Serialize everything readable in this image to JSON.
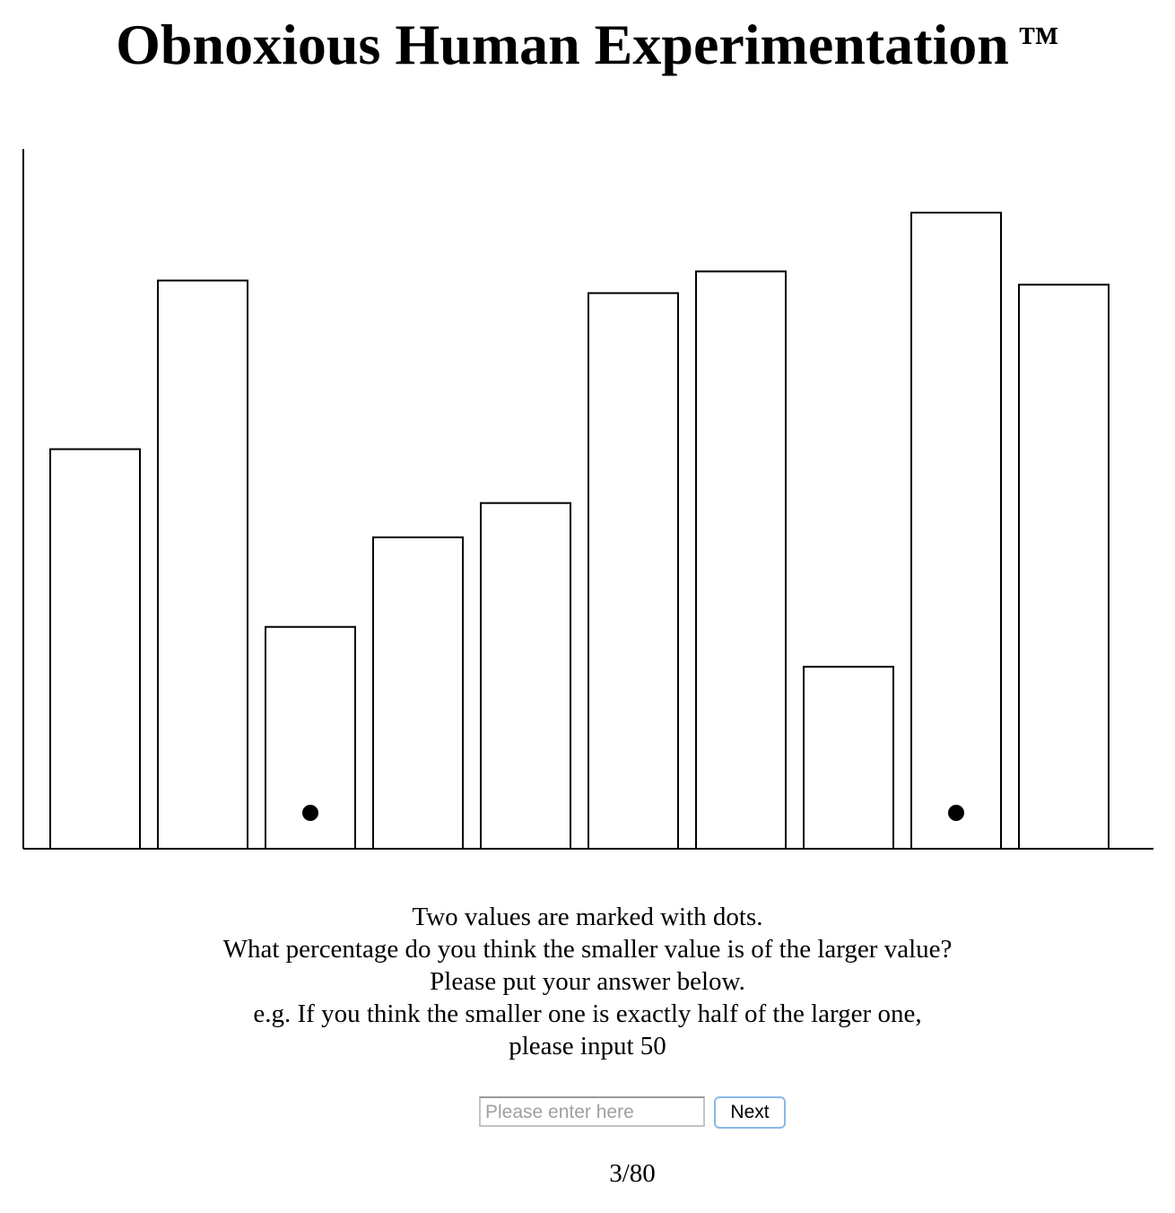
{
  "page": {
    "title": "Obnoxious Human Experimentation",
    "trademark": "™"
  },
  "chart_data": {
    "type": "bar",
    "title": "",
    "xlabel": "",
    "ylabel": "",
    "ylim": [
      0,
      100
    ],
    "grid": false,
    "categories": [
      "",
      "",
      "",
      "",
      "",
      "",
      "",
      "",
      "",
      ""
    ],
    "values": [
      57.1,
      81.2,
      31.7,
      44.5,
      49.4,
      79.4,
      82.5,
      26.0,
      90.9,
      80.6
    ],
    "marked_indices": [
      2,
      8
    ],
    "marker": "dot"
  },
  "instructions": {
    "line1": "Two values are marked with dots.",
    "line2": "What percentage do you think the smaller value is of the larger value?",
    "line3": "Please put your answer below.",
    "line4": "e.g. If you think the smaller one is exactly half of the larger one,",
    "line5": "please input 50"
  },
  "answer": {
    "placeholder": "Please enter here",
    "value": "",
    "next_label": "Next"
  },
  "progress": {
    "text": "3/80"
  }
}
